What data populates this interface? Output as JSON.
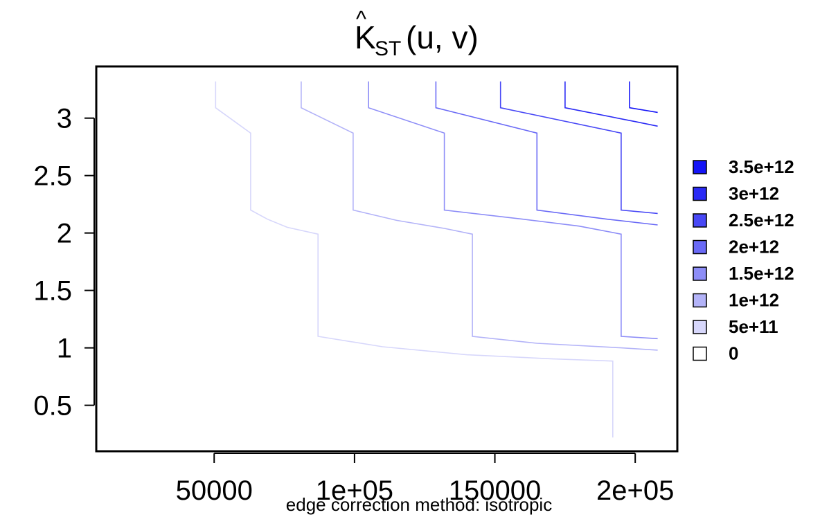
{
  "chart_data": {
    "type": "contour",
    "title": {
      "main": "K",
      "hat": "^",
      "subscript": "ST",
      "args": "(u, v)"
    },
    "subtitle": "edge correction method: isotropic",
    "xlim": [
      8000,
      215000
    ],
    "ylim": [
      0.1,
      3.45
    ],
    "x_ticks": [
      {
        "value": 50000,
        "label": "50000"
      },
      {
        "value": 100000,
        "label": "1e+05"
      },
      {
        "value": 150000,
        "label": "150000"
      },
      {
        "value": 200000,
        "label": "2e+05"
      }
    ],
    "y_ticks": [
      {
        "value": 0.5,
        "label": "0.5"
      },
      {
        "value": 1,
        "label": "1"
      },
      {
        "value": 1.5,
        "label": "1.5"
      },
      {
        "value": 2,
        "label": "2"
      },
      {
        "value": 2.5,
        "label": "2.5"
      },
      {
        "value": 3,
        "label": "3"
      }
    ],
    "legend": {
      "placement": "right",
      "entries": [
        {
          "label": "3.5e+12",
          "color": "#1414f7"
        },
        {
          "label": "3e+12",
          "color": "#2a2af5"
        },
        {
          "label": "2.5e+12",
          "color": "#4848f6"
        },
        {
          "label": "2e+12",
          "color": "#6a6af6"
        },
        {
          "label": "1.5e+12",
          "color": "#8d8df7"
        },
        {
          "label": "1e+12",
          "color": "#b3b3f8"
        },
        {
          "label": "5e+11",
          "color": "#d7d7fb"
        },
        {
          "label": "0",
          "color": "#ffffff"
        }
      ]
    },
    "contours": [
      {
        "level": "5e+11",
        "color": "#d7d7fb",
        "points": [
          [
            50500,
            3.32
          ],
          [
            50500,
            3.09
          ],
          [
            63000,
            2.87
          ],
          [
            63000,
            2.2
          ],
          [
            69000,
            2.12
          ],
          [
            76000,
            2.05
          ],
          [
            87000,
            1.99
          ],
          [
            87000,
            1.1
          ],
          [
            110000,
            1.01
          ],
          [
            140000,
            0.94
          ],
          [
            170000,
            0.905
          ],
          [
            192000,
            0.885
          ],
          [
            192000,
            0.22
          ]
        ]
      },
      {
        "level": "1e+12",
        "color": "#b3b3f8",
        "points": [
          [
            81000,
            3.32
          ],
          [
            81000,
            3.09
          ],
          [
            99500,
            2.87
          ],
          [
            99500,
            2.2
          ],
          [
            115000,
            2.11
          ],
          [
            132000,
            2.04
          ],
          [
            142000,
            1.99
          ],
          [
            142000,
            1.1
          ],
          [
            165000,
            1.04
          ],
          [
            195000,
            1.0
          ],
          [
            208000,
            0.98
          ]
        ]
      },
      {
        "level": "1.5e+12",
        "color": "#8d8df7",
        "points": [
          [
            105000,
            3.32
          ],
          [
            105000,
            3.09
          ],
          [
            132000,
            2.87
          ],
          [
            132000,
            2.2
          ],
          [
            160000,
            2.12
          ],
          [
            180000,
            2.06
          ],
          [
            195000,
            1.99
          ],
          [
            195000,
            1.1
          ],
          [
            208000,
            1.08
          ]
        ]
      },
      {
        "level": "2e+12",
        "color": "#6a6af6",
        "points": [
          [
            129000,
            3.32
          ],
          [
            129000,
            3.09
          ],
          [
            165000,
            2.87
          ],
          [
            165000,
            2.2
          ],
          [
            190000,
            2.12
          ],
          [
            208000,
            2.07
          ]
        ]
      },
      {
        "level": "2.5e+12",
        "color": "#4848f6",
        "points": [
          [
            152000,
            3.32
          ],
          [
            152000,
            3.09
          ],
          [
            195000,
            2.87
          ],
          [
            195000,
            2.2
          ],
          [
            208000,
            2.17
          ]
        ]
      },
      {
        "level": "3e+12",
        "color": "#2a2af5",
        "points": [
          [
            175000,
            3.32
          ],
          [
            175000,
            3.09
          ],
          [
            200000,
            2.97
          ],
          [
            208000,
            2.93
          ]
        ]
      },
      {
        "level": "3.5e+12",
        "color": "#1414f7",
        "points": [
          [
            198000,
            3.32
          ],
          [
            198000,
            3.09
          ],
          [
            208000,
            3.05
          ]
        ]
      }
    ]
  }
}
